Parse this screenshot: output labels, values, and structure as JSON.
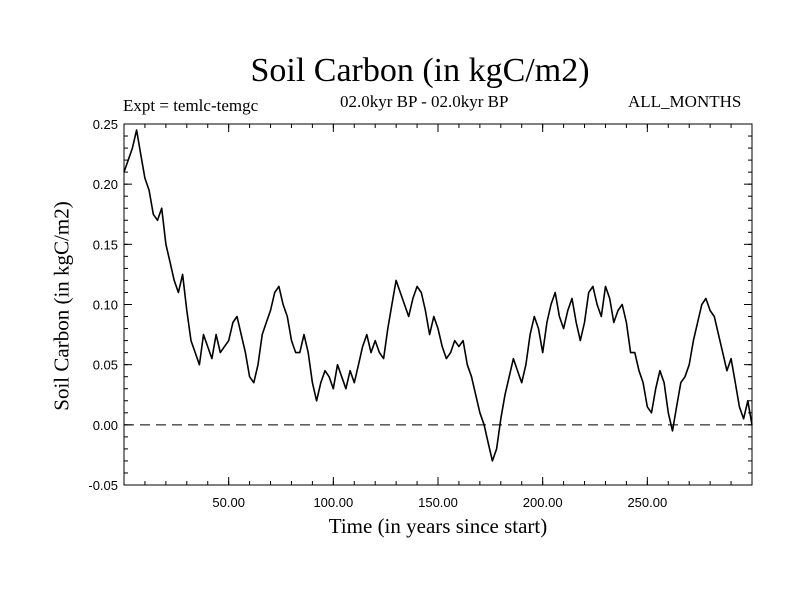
{
  "chart_data": {
    "type": "line",
    "title": "Soil Carbon (in kgC/m2)",
    "experiment_label": "Expt = temlc-temgc",
    "period_label": "02.0kyr BP - 02.0kyr BP",
    "months_label": "ALL_MONTHS",
    "xlabel": "Time (in years since start)",
    "ylabel": "Soil Carbon (in kgC/m2)",
    "xlim": [
      0,
      300
    ],
    "ylim": [
      -0.05,
      0.25
    ],
    "x_ticks": [
      50,
      100,
      150,
      200,
      250
    ],
    "x_tick_labels": [
      "50.00",
      "100.00",
      "150.00",
      "200.00",
      "250.00"
    ],
    "y_ticks": [
      -0.05,
      0.0,
      0.05,
      0.1,
      0.15,
      0.2,
      0.25
    ],
    "y_tick_labels": [
      "-0.05",
      "0.00",
      "0.05",
      "0.10",
      "0.15",
      "0.20",
      "0.25"
    ],
    "reference_line": {
      "y": 0.0,
      "style": "dashed"
    },
    "series": [
      {
        "name": "Soil Carbon",
        "x": [
          0,
          2,
          4,
          6,
          8,
          10,
          12,
          14,
          16,
          18,
          20,
          22,
          24,
          26,
          28,
          30,
          32,
          34,
          36,
          38,
          40,
          42,
          44,
          46,
          48,
          50,
          52,
          54,
          56,
          58,
          60,
          62,
          64,
          66,
          68,
          70,
          72,
          74,
          76,
          78,
          80,
          82,
          84,
          86,
          88,
          90,
          92,
          94,
          96,
          98,
          100,
          102,
          104,
          106,
          108,
          110,
          112,
          114,
          116,
          118,
          120,
          122,
          124,
          126,
          128,
          130,
          132,
          134,
          136,
          138,
          140,
          142,
          144,
          146,
          148,
          150,
          152,
          154,
          156,
          158,
          160,
          162,
          164,
          166,
          168,
          170,
          172,
          174,
          176,
          178,
          180,
          182,
          184,
          186,
          188,
          190,
          192,
          194,
          196,
          198,
          200,
          202,
          204,
          206,
          208,
          210,
          212,
          214,
          216,
          218,
          220,
          222,
          224,
          226,
          228,
          230,
          232,
          234,
          236,
          238,
          240,
          242,
          244,
          246,
          248,
          250,
          252,
          254,
          256,
          258,
          260,
          262,
          264,
          266,
          268,
          270,
          272,
          274,
          276,
          278,
          280,
          282,
          284,
          286,
          288,
          290,
          292,
          294,
          296,
          298,
          300
        ],
        "values": [
          0.21,
          0.22,
          0.23,
          0.245,
          0.225,
          0.205,
          0.195,
          0.175,
          0.17,
          0.18,
          0.15,
          0.135,
          0.12,
          0.11,
          0.125,
          0.095,
          0.07,
          0.06,
          0.05,
          0.075,
          0.065,
          0.055,
          0.075,
          0.06,
          0.065,
          0.07,
          0.085,
          0.09,
          0.075,
          0.06,
          0.04,
          0.035,
          0.05,
          0.075,
          0.085,
          0.095,
          0.11,
          0.115,
          0.1,
          0.09,
          0.07,
          0.06,
          0.06,
          0.075,
          0.06,
          0.035,
          0.02,
          0.035,
          0.045,
          0.04,
          0.03,
          0.05,
          0.04,
          0.03,
          0.045,
          0.035,
          0.05,
          0.065,
          0.075,
          0.06,
          0.07,
          0.06,
          0.055,
          0.08,
          0.1,
          0.12,
          0.11,
          0.1,
          0.09,
          0.105,
          0.115,
          0.11,
          0.095,
          0.075,
          0.09,
          0.08,
          0.065,
          0.055,
          0.06,
          0.07,
          0.065,
          0.07,
          0.05,
          0.04,
          0.025,
          0.01,
          0.0,
          -0.015,
          -0.03,
          -0.02,
          0.005,
          0.025,
          0.04,
          0.055,
          0.045,
          0.035,
          0.05,
          0.075,
          0.09,
          0.08,
          0.06,
          0.085,
          0.1,
          0.11,
          0.09,
          0.08,
          0.095,
          0.105,
          0.085,
          0.07,
          0.085,
          0.11,
          0.115,
          0.1,
          0.09,
          0.115,
          0.105,
          0.085,
          0.095,
          0.1,
          0.085,
          0.06,
          0.06,
          0.045,
          0.035,
          0.015,
          0.01,
          0.03,
          0.045,
          0.035,
          0.01,
          -0.005,
          0.015,
          0.035,
          0.04,
          0.05,
          0.07,
          0.085,
          0.1,
          0.105,
          0.095,
          0.09,
          0.075,
          0.06,
          0.045,
          0.055,
          0.035,
          0.015,
          0.005,
          0.02,
          0.0
        ]
      }
    ]
  }
}
